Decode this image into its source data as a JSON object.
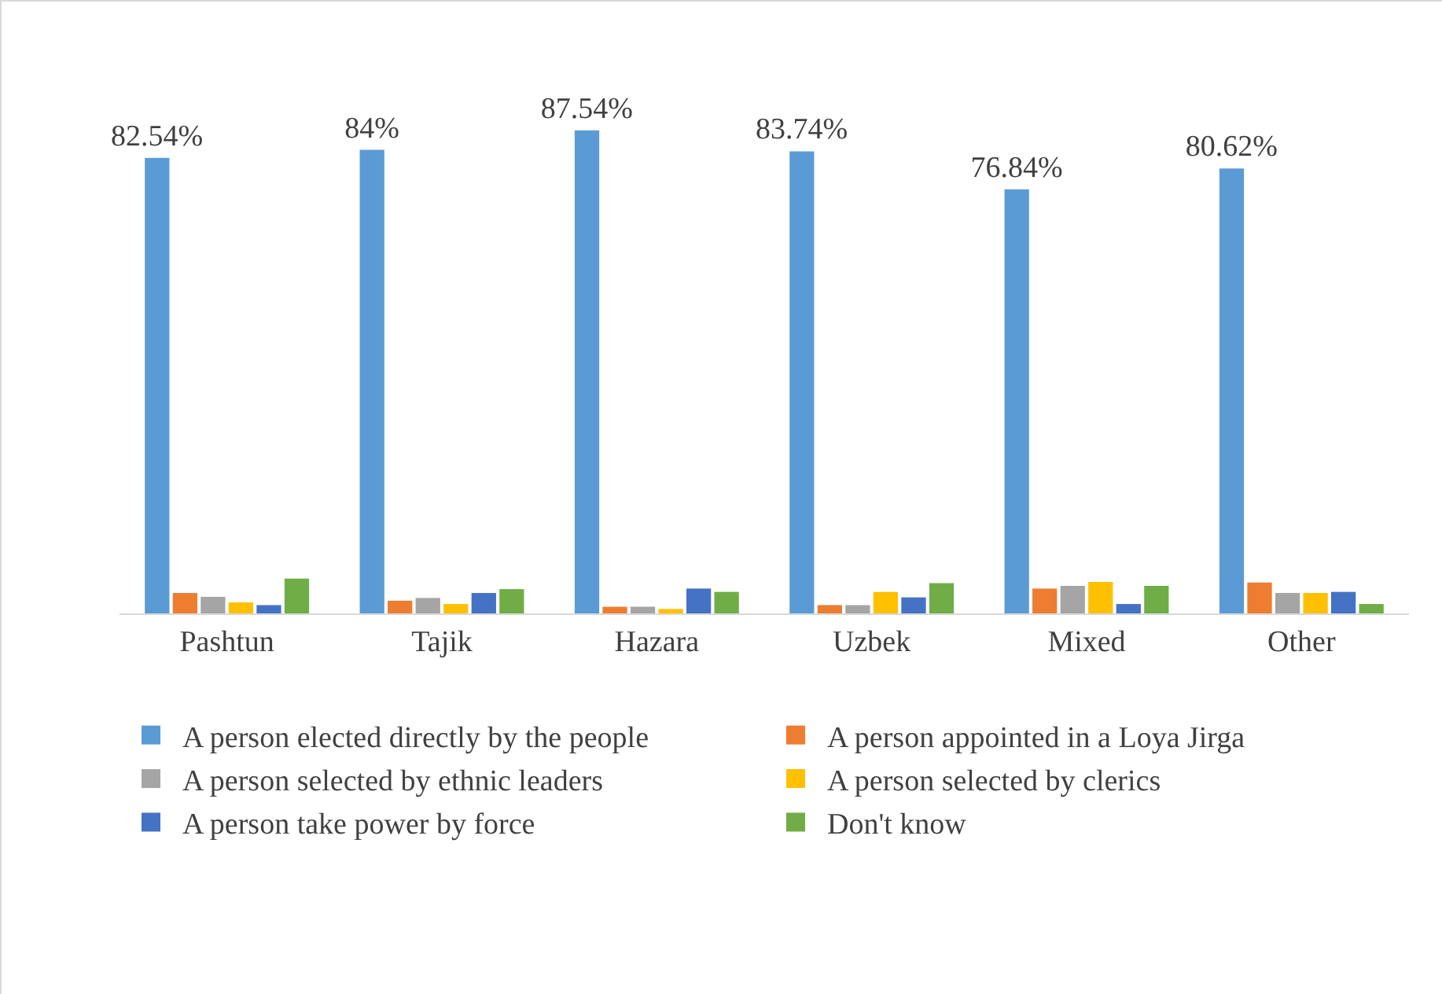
{
  "chart_data": {
    "type": "bar",
    "categories": [
      "Pashtun",
      "Tajik",
      "Hazara",
      "Uzbek",
      "Mixed",
      "Other"
    ],
    "series": [
      {
        "name": "A person elected directly by the people",
        "color": "#5b9bd5",
        "values": [
          82.54,
          84,
          87.54,
          83.74,
          76.84,
          80.62
        ],
        "value_labels": [
          "82.54%",
          "84%",
          "87.54%",
          "83.74%",
          "76.84%",
          "80.62%"
        ]
      },
      {
        "name": "A person appointed in a Loya Jirga",
        "color": "#ed7d31",
        "values": [
          3.7,
          2.3,
          1.2,
          1.5,
          4.5,
          5.6
        ]
      },
      {
        "name": "A person selected by ethnic leaders",
        "color": "#a5a5a5",
        "values": [
          3.0,
          2.8,
          1.2,
          1.5,
          5.0,
          3.7
        ]
      },
      {
        "name": "A person selected by clerics",
        "color": "#ffc000",
        "values": [
          2.0,
          1.7,
          0.8,
          3.9,
          5.7,
          3.7
        ]
      },
      {
        "name": "A person take power by force",
        "color": "#4472c4",
        "values": [
          1.5,
          3.7,
          4.5,
          2.9,
          1.7,
          3.9
        ]
      },
      {
        "name": "Don't know",
        "color": "#70ad47",
        "values": [
          6.3,
          4.4,
          3.9,
          5.5,
          5.0,
          1.7
        ]
      }
    ],
    "legend": "bottom"
  }
}
